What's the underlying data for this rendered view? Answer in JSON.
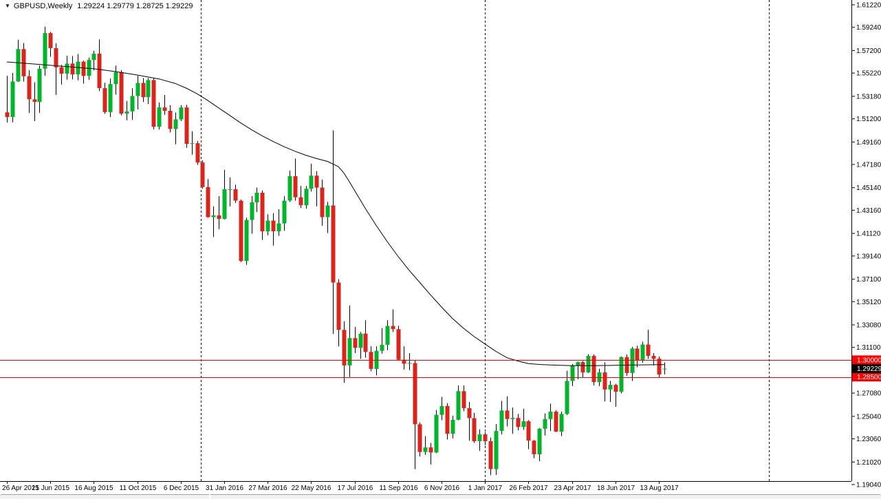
{
  "title": {
    "symbol": "GBPUSD,Weekly",
    "ohlc_text": "1.29224 1.29779 1.28725 1.29229"
  },
  "icons": {
    "symbol_dropdown": "▼"
  },
  "colors": {
    "background": "#ffffff",
    "bull": "#00b42c",
    "bear": "#da251d",
    "wick": "#000000",
    "ma_line": "#000000",
    "hline": "#ff0000",
    "hline_box_bg": "#ff0000",
    "hline_box_text": "#ffffff",
    "current_price_box_bg": "#000000",
    "current_price_box_text": "#ffffff",
    "axis": "#000000"
  },
  "chart_data": {
    "type": "candlestick",
    "symbol": "GBPUSD",
    "timeframe": "Weekly",
    "current_bar": {
      "open": 1.29224,
      "high": 1.29779,
      "low": 1.28725,
      "close": 1.29229
    },
    "y_range": [
      1.1904,
      1.6122
    ],
    "y_axis_labels": [
      "1.61220",
      "1.59240",
      "1.57200",
      "1.55220",
      "1.53180",
      "1.51200",
      "1.49160",
      "1.47180",
      "1.45140",
      "1.43160",
      "1.41120",
      "1.39140",
      "1.37100",
      "1.35120",
      "1.33080",
      "1.31100",
      "1.27080",
      "1.25040",
      "1.23060",
      "1.21020",
      "1.19040"
    ],
    "x_axis_labels": [
      "26 Apr 2015",
      "21 Jun 2015",
      "16 Aug 2015",
      "11 Oct 2015",
      "6 Dec 2015",
      "31 Jan 2016",
      "27 Mar 2016",
      "22 May 2016",
      "17 Jul 2016",
      "11 Sep 2016",
      "6 Nov 2016",
      "1 Jan 2017",
      "26 Feb 2017",
      "23 Apr 2017",
      "18 Jun 2017",
      "13 Aug 2017"
    ],
    "x_label_every_n_bars": 8,
    "horizontal_lines": [
      {
        "price": 1.3,
        "label": "1.30000"
      },
      {
        "price": 1.285,
        "label": "1.28500"
      }
    ],
    "current_price_label": "1.29229",
    "vertical_dashed_week_indices": [
      35.7,
      88,
      140.2
    ],
    "candles_ohlc": [
      [
        1.5177,
        1.5498,
        1.5087,
        1.5135
      ],
      [
        1.5135,
        1.5523,
        1.5089,
        1.5448
      ],
      [
        1.5448,
        1.5815,
        1.5445,
        1.5733
      ],
      [
        1.5733,
        1.5786,
        1.5447,
        1.5494
      ],
      [
        1.5494,
        1.5548,
        1.517,
        1.5291
      ],
      [
        1.5291,
        1.5441,
        1.51,
        1.5268
      ],
      [
        1.5268,
        1.5588,
        1.5172,
        1.556
      ],
      [
        1.556,
        1.5929,
        1.5499,
        1.5873
      ],
      [
        1.5873,
        1.5885,
        1.5665,
        1.5741
      ],
      [
        1.5741,
        1.5784,
        1.533,
        1.5573
      ],
      [
        1.5573,
        1.5593,
        1.542,
        1.5517
      ],
      [
        1.5517,
        1.5675,
        1.5465,
        1.5605
      ],
      [
        1.5605,
        1.5672,
        1.5467,
        1.551
      ],
      [
        1.551,
        1.569,
        1.5458,
        1.5622
      ],
      [
        1.5622,
        1.563,
        1.5429,
        1.5497
      ],
      [
        1.5497,
        1.5658,
        1.5462,
        1.5637
      ],
      [
        1.5637,
        1.5718,
        1.5546,
        1.5693
      ],
      [
        1.5693,
        1.5819,
        1.5363,
        1.5389
      ],
      [
        1.5389,
        1.5437,
        1.5163,
        1.5179
      ],
      [
        1.5179,
        1.5474,
        1.5135,
        1.5425
      ],
      [
        1.5425,
        1.5588,
        1.5332,
        1.553
      ],
      [
        1.553,
        1.5549,
        1.515,
        1.5165
      ],
      [
        1.5165,
        1.5277,
        1.5107,
        1.5185
      ],
      [
        1.5185,
        1.5388,
        1.511,
        1.532
      ],
      [
        1.532,
        1.5498,
        1.5202,
        1.5435
      ],
      [
        1.5435,
        1.5478,
        1.5267,
        1.531
      ],
      [
        1.531,
        1.5478,
        1.525,
        1.546
      ],
      [
        1.546,
        1.5476,
        1.5027,
        1.505
      ],
      [
        1.505,
        1.5263,
        1.5025,
        1.522
      ],
      [
        1.522,
        1.5329,
        1.5155,
        1.519
      ],
      [
        1.519,
        1.524,
        1.5,
        1.503
      ],
      [
        1.503,
        1.5175,
        1.4895,
        1.5115
      ],
      [
        1.5115,
        1.524,
        1.51,
        1.522
      ],
      [
        1.522,
        1.5242,
        1.4865,
        1.49
      ],
      [
        1.49,
        1.501,
        1.4805,
        1.4905
      ],
      [
        1.4905,
        1.4925,
        1.4715,
        1.4735
      ],
      [
        1.4735,
        1.4755,
        1.4505,
        1.452
      ],
      [
        1.452,
        1.459,
        1.425,
        1.4255
      ],
      [
        1.4255,
        1.435,
        1.408,
        1.427
      ],
      [
        1.427,
        1.444,
        1.415,
        1.424
      ],
      [
        1.424,
        1.467,
        1.4235,
        1.45
      ],
      [
        1.45,
        1.4605,
        1.435,
        1.45
      ],
      [
        1.45,
        1.454,
        1.438,
        1.44
      ],
      [
        1.44,
        1.441,
        1.386,
        1.387
      ],
      [
        1.387,
        1.425,
        1.3836,
        1.423
      ],
      [
        1.423,
        1.444,
        1.411,
        1.4385
      ],
      [
        1.4385,
        1.4515,
        1.43,
        1.447
      ],
      [
        1.447,
        1.449,
        1.4055,
        1.413
      ],
      [
        1.413,
        1.428,
        1.4095,
        1.4225
      ],
      [
        1.4225,
        1.429,
        1.4005,
        1.413
      ],
      [
        1.413,
        1.4325,
        1.409,
        1.42
      ],
      [
        1.42,
        1.444,
        1.4135,
        1.44
      ],
      [
        1.44,
        1.4665,
        1.439,
        1.4615
      ],
      [
        1.4615,
        1.477,
        1.44,
        1.443
      ],
      [
        1.443,
        1.453,
        1.4335,
        1.436
      ],
      [
        1.436,
        1.453,
        1.433,
        1.4505
      ],
      [
        1.4505,
        1.4725,
        1.448,
        1.462
      ],
      [
        1.462,
        1.466,
        1.435,
        1.4515
      ],
      [
        1.4515,
        1.4585,
        1.418,
        1.4255
      ],
      [
        1.4255,
        1.439,
        1.4115,
        1.4358
      ],
      [
        1.4358,
        1.5018,
        1.3229,
        1.368
      ],
      [
        1.368,
        1.371,
        1.3118,
        1.3264
      ],
      [
        1.3264,
        1.334,
        1.2798,
        1.2952
      ],
      [
        1.2952,
        1.348,
        1.285,
        1.3192
      ],
      [
        1.3192,
        1.329,
        1.306,
        1.3106
      ],
      [
        1.3106,
        1.3245,
        1.301,
        1.3231
      ],
      [
        1.3231,
        1.335,
        1.302,
        1.307
      ],
      [
        1.307,
        1.312,
        1.29,
        1.2921
      ],
      [
        1.2921,
        1.312,
        1.2865,
        1.308
      ],
      [
        1.308,
        1.328,
        1.3055,
        1.3133
      ],
      [
        1.3133,
        1.335,
        1.3085,
        1.3298
      ],
      [
        1.3298,
        1.3445,
        1.3245,
        1.327
      ],
      [
        1.327,
        1.33,
        1.2995,
        1.3002
      ],
      [
        1.3002,
        1.312,
        1.2915,
        1.2966
      ],
      [
        1.2966,
        1.306,
        1.291,
        1.2972
      ],
      [
        1.2972,
        1.2995,
        1.204,
        1.2434
      ],
      [
        1.2434,
        1.245,
        1.215,
        1.219
      ],
      [
        1.219,
        1.233,
        1.2165,
        1.223
      ],
      [
        1.223,
        1.227,
        1.208,
        1.2186
      ],
      [
        1.2186,
        1.256,
        1.218,
        1.2517
      ],
      [
        1.2517,
        1.2675,
        1.247,
        1.2595
      ],
      [
        1.2595,
        1.262,
        1.23,
        1.235
      ],
      [
        1.235,
        1.251,
        1.231,
        1.2473
      ],
      [
        1.2473,
        1.2775,
        1.247,
        1.2725
      ],
      [
        1.2725,
        1.2775,
        1.255,
        1.2575
      ],
      [
        1.2575,
        1.263,
        1.229,
        1.2488
      ],
      [
        1.2488,
        1.2535,
        1.227,
        1.2285
      ],
      [
        1.2285,
        1.239,
        1.22,
        1.2345
      ],
      [
        1.2345,
        1.2365,
        1.225,
        1.2285
      ],
      [
        1.2285,
        1.2317,
        1.1986,
        1.204
      ],
      [
        1.204,
        1.2435,
        1.1988,
        1.2375
      ],
      [
        1.2375,
        1.264,
        1.2345,
        1.2555
      ],
      [
        1.2555,
        1.268,
        1.2415,
        1.248
      ],
      [
        1.248,
        1.258,
        1.235,
        1.249
      ],
      [
        1.249,
        1.2525,
        1.238,
        1.241
      ],
      [
        1.241,
        1.257,
        1.2385,
        1.246
      ],
      [
        1.246,
        1.247,
        1.2215,
        1.229
      ],
      [
        1.229,
        1.2295,
        1.2135,
        1.217
      ],
      [
        1.217,
        1.24,
        1.211,
        1.2395
      ],
      [
        1.2395,
        1.253,
        1.2335,
        1.248
      ],
      [
        1.248,
        1.2615,
        1.2375,
        1.2545
      ],
      [
        1.2545,
        1.2557,
        1.2365,
        1.237
      ],
      [
        1.237,
        1.2545,
        1.233,
        1.2525
      ],
      [
        1.2525,
        1.2905,
        1.2515,
        1.2815
      ],
      [
        1.2815,
        1.2965,
        1.277,
        1.295
      ],
      [
        1.295,
        1.2985,
        1.283,
        1.298
      ],
      [
        1.298,
        1.299,
        1.2845,
        1.289
      ],
      [
        1.289,
        1.305,
        1.2885,
        1.3035
      ],
      [
        1.3035,
        1.3048,
        1.2775,
        1.2805
      ],
      [
        1.2805,
        1.2922,
        1.277,
        1.289
      ],
      [
        1.289,
        1.2978,
        1.2635,
        1.274
      ],
      [
        1.274,
        1.2815,
        1.263,
        1.278
      ],
      [
        1.278,
        1.279,
        1.2588,
        1.272
      ],
      [
        1.272,
        1.303,
        1.2705,
        1.3025
      ],
      [
        1.3025,
        1.3047,
        1.286,
        1.2885
      ],
      [
        1.2885,
        1.3115,
        1.2815,
        1.31
      ],
      [
        1.31,
        1.3125,
        1.2935,
        1.2995
      ],
      [
        1.2995,
        1.316,
        1.2975,
        1.3135
      ],
      [
        1.3135,
        1.3265,
        1.301,
        1.3035
      ],
      [
        1.3035,
        1.306,
        1.295,
        1.301
      ],
      [
        1.301,
        1.303,
        1.2845,
        1.287
      ],
      [
        1.29224,
        1.29779,
        1.28725,
        1.29229
      ]
    ],
    "ma_points": [
      [
        0,
        1.562
      ],
      [
        4,
        1.5605
      ],
      [
        8,
        1.559
      ],
      [
        12,
        1.5575
      ],
      [
        16,
        1.556
      ],
      [
        20,
        1.5535
      ],
      [
        24,
        1.5505
      ],
      [
        28,
        1.547
      ],
      [
        31,
        1.543
      ],
      [
        33,
        1.539
      ],
      [
        35,
        1.534
      ],
      [
        37,
        1.528
      ],
      [
        39,
        1.5215
      ],
      [
        41,
        1.515
      ],
      [
        43,
        1.5085
      ],
      [
        45,
        1.5025
      ],
      [
        47,
        1.497
      ],
      [
        49,
        1.492
      ],
      [
        51,
        1.4875
      ],
      [
        53,
        1.4835
      ],
      [
        55,
        1.48
      ],
      [
        57,
        1.477
      ],
      [
        59,
        1.4745
      ],
      [
        61,
        1.47
      ],
      [
        62,
        1.4645
      ],
      [
        63,
        1.457
      ],
      [
        64,
        1.449
      ],
      [
        66,
        1.433
      ],
      [
        68,
        1.418
      ],
      [
        70,
        1.404
      ],
      [
        72,
        1.391
      ],
      [
        74,
        1.379
      ],
      [
        76,
        1.368
      ],
      [
        78,
        1.357
      ],
      [
        80,
        1.3465
      ],
      [
        82,
        1.3365
      ],
      [
        84,
        1.328
      ],
      [
        86,
        1.3205
      ],
      [
        88,
        1.314
      ],
      [
        90,
        1.3075
      ],
      [
        92,
        1.302
      ],
      [
        94,
        1.299
      ],
      [
        96,
        1.2968
      ],
      [
        98,
        1.296
      ],
      [
        100,
        1.2955
      ],
      [
        104,
        1.295
      ],
      [
        108,
        1.295
      ],
      [
        112,
        1.2952
      ],
      [
        116,
        1.2955
      ],
      [
        120,
        1.2958
      ],
      [
        121,
        1.2958
      ]
    ]
  }
}
